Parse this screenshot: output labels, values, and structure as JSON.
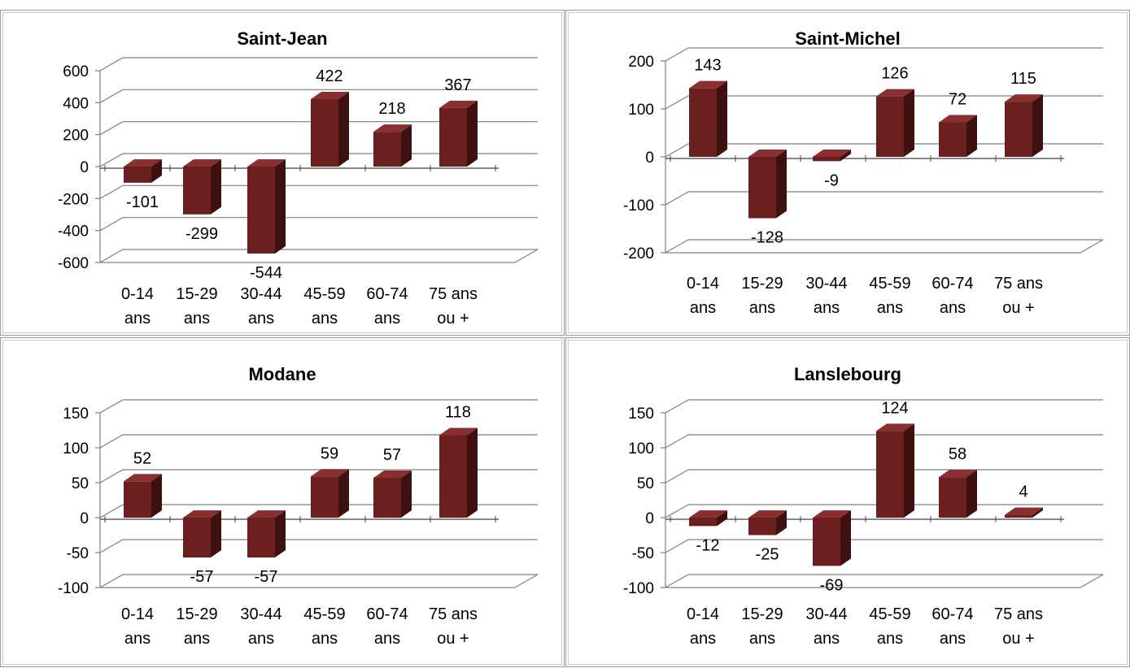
{
  "colors": {
    "bar_front": "#6b1f1f",
    "bar_side": "#3e1010",
    "bar_top": "#8a2f2f",
    "grid": "#808080"
  },
  "chart_data": [
    {
      "type": "bar",
      "title": "Saint-Jean",
      "categories": [
        [
          "0-14",
          "ans"
        ],
        [
          "15-29",
          "ans"
        ],
        [
          "30-44",
          "ans"
        ],
        [
          "45-59",
          "ans"
        ],
        [
          "60-74",
          "ans"
        ],
        [
          "75 ans",
          "ou +"
        ]
      ],
      "values": [
        -101,
        -299,
        -544,
        422,
        218,
        367
      ],
      "data_labels": [
        "-101",
        "-299",
        "-544",
        "422",
        "218",
        "367"
      ],
      "yticks": [
        "600",
        "400",
        "200",
        "0",
        "-200",
        "-400",
        "-600"
      ],
      "ylim": [
        -600,
        600
      ],
      "grid": true,
      "legend": "none"
    },
    {
      "type": "bar",
      "title": "Saint-Michel",
      "categories": [
        [
          "0-14",
          "ans"
        ],
        [
          "15-29",
          "ans"
        ],
        [
          "30-44",
          "ans"
        ],
        [
          "45-59",
          "ans"
        ],
        [
          "60-74",
          "ans"
        ],
        [
          "75 ans",
          "ou +"
        ]
      ],
      "values": [
        143,
        -128,
        -9,
        126,
        72,
        115
      ],
      "data_labels": [
        "143",
        "-128",
        "-9",
        "126",
        "72",
        "115"
      ],
      "yticks": [
        "200",
        "100",
        "0",
        "-100",
        "-200"
      ],
      "ylim": [
        -200,
        200
      ],
      "grid": true,
      "legend": "none"
    },
    {
      "type": "bar",
      "title": "Modane",
      "categories": [
        [
          "0-14",
          "ans"
        ],
        [
          "15-29",
          "ans"
        ],
        [
          "30-44",
          "ans"
        ],
        [
          "45-59",
          "ans"
        ],
        [
          "60-74",
          "ans"
        ],
        [
          "75 ans",
          "ou +"
        ]
      ],
      "values": [
        52,
        -57,
        -57,
        59,
        57,
        118
      ],
      "data_labels": [
        "52",
        "-57",
        "-57",
        "59",
        "57",
        "118"
      ],
      "yticks": [
        "150",
        "100",
        "50",
        "0",
        "-50",
        "-100"
      ],
      "ylim": [
        -100,
        150
      ],
      "grid": true,
      "legend": "none"
    },
    {
      "type": "bar",
      "title": "Lanslebourg",
      "categories": [
        [
          "0-14",
          "ans"
        ],
        [
          "15-29",
          "ans"
        ],
        [
          "30-44",
          "ans"
        ],
        [
          "45-59",
          "ans"
        ],
        [
          "60-74",
          "ans"
        ],
        [
          "75 ans",
          "ou +"
        ]
      ],
      "values": [
        -12,
        -25,
        -69,
        124,
        58,
        4
      ],
      "data_labels": [
        "-12",
        "-25",
        "-69",
        "124",
        "58",
        "4"
      ],
      "yticks": [
        "150",
        "100",
        "50",
        "0",
        "-50",
        "-100"
      ],
      "ylim": [
        -100,
        150
      ],
      "grid": true,
      "legend": "none"
    }
  ]
}
